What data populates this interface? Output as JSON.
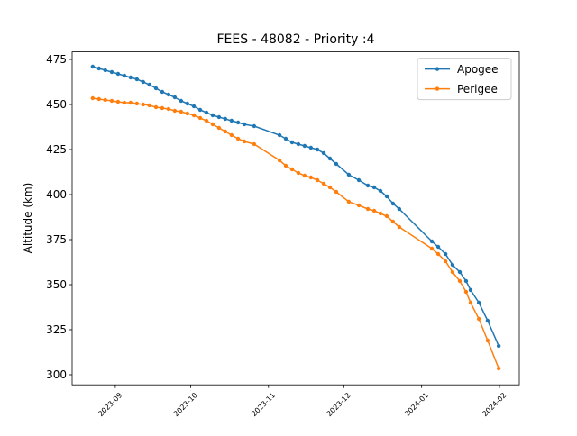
{
  "chart_data": {
    "type": "line",
    "title": "FEES - 48082 - Priority :4",
    "y_label": "Altitude (km)",
    "x": [
      19592.0,
      19594.5,
      19597.0,
      19599.6,
      19602.1,
      19604.6,
      19607.1,
      19609.6,
      19612.1,
      19614.6,
      19617.2,
      19619.7,
      19622.2,
      19624.7,
      19627.2,
      19629.7,
      19632.3,
      19634.8,
      19637.3,
      19639.8,
      19642.3,
      19644.8,
      19647.3,
      19649.9,
      19652.4,
      19656.3,
      19666.4,
      19668.9,
      19671.4,
      19673.9,
      19676.4,
      19678.9,
      19681.5,
      19684.0,
      19686.5,
      19689.0,
      19694.0,
      19698.0,
      19701.6,
      19704.1,
      19706.6,
      19709.1,
      19711.6,
      19714.1,
      19727.1,
      19729.6,
      19732.5,
      19735.3,
      19738.2,
      19740.7,
      19742.5,
      19745.8,
      19749.3,
      19753.7
    ],
    "series": [
      {
        "name": "Apogee",
        "color": "#1f77b4",
        "values": [
          471,
          470,
          469,
          468,
          467,
          466,
          465,
          464,
          462.5,
          461,
          459,
          457,
          455.5,
          454,
          452,
          450.5,
          449,
          447,
          445.5,
          444,
          443,
          442,
          441,
          440,
          439,
          438,
          433,
          431,
          429,
          428,
          427,
          426,
          425,
          423,
          420,
          417,
          411,
          408,
          405,
          404,
          402,
          399,
          395,
          392,
          374,
          371,
          367,
          361,
          357,
          352,
          347,
          340,
          330,
          316
        ]
      },
      {
        "name": "Perigee",
        "color": "#ff7f0e",
        "values": [
          453.5,
          453,
          452.5,
          452,
          451.5,
          451,
          451,
          450.5,
          450,
          449.5,
          448.5,
          448,
          447.5,
          446.5,
          446,
          445,
          444,
          442.5,
          441,
          439,
          437,
          435,
          433,
          431,
          429.5,
          428,
          419,
          416,
          414,
          412,
          410.5,
          409.5,
          408,
          406,
          404,
          401.5,
          396,
          394,
          392,
          391,
          389.5,
          388,
          385,
          382,
          370,
          367,
          363,
          357,
          352,
          346,
          340,
          331,
          319,
          303.5
        ]
      }
    ],
    "xlim": [
      19583.8,
      19761.9
    ],
    "xticks": [
      {
        "value": 19601,
        "label": "2023-09"
      },
      {
        "value": 19631,
        "label": "2023-10"
      },
      {
        "value": 19662,
        "label": "2023-11"
      },
      {
        "value": 19692,
        "label": "2023-12"
      },
      {
        "value": 19723,
        "label": "2024-01"
      },
      {
        "value": 19754,
        "label": "2024-02"
      }
    ],
    "ylim": [
      294.4,
      479.2
    ],
    "yticks": [
      300,
      325,
      350,
      375,
      400,
      425,
      450,
      475
    ],
    "legend": "upper right"
  }
}
